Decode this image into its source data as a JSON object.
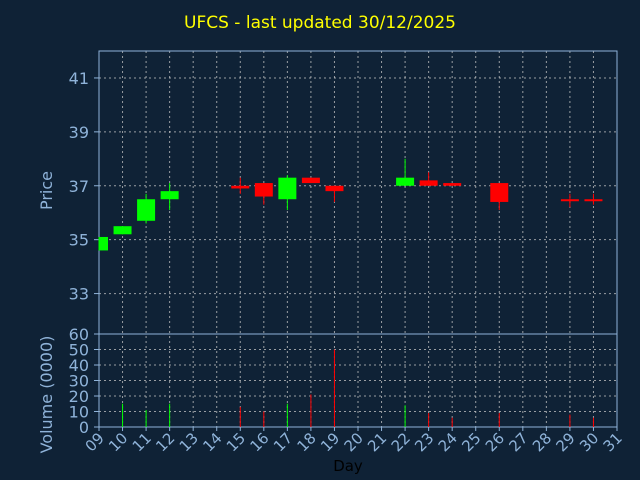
{
  "chart_data": {
    "type": "candlestick",
    "title": "UFCS - last updated 30/12/2025",
    "x_tick_labels": [
      "09",
      "10",
      "11",
      "12",
      "13",
      "14",
      "15",
      "16",
      "17",
      "18",
      "19",
      "20",
      "21",
      "22",
      "23",
      "24",
      "25",
      "26",
      "27",
      "28",
      "29",
      "30",
      "31"
    ],
    "xlabel": "Day",
    "grid": true,
    "price_panel": {
      "ylabel": "Price",
      "ylim": [
        31.5,
        42
      ],
      "y_ticks": [
        33,
        35,
        37,
        39,
        41
      ]
    },
    "volume_panel": {
      "ylabel": "Volume (0000)",
      "ylim": [
        0,
        60
      ],
      "y_ticks": [
        0,
        10,
        20,
        30,
        40,
        50,
        60
      ]
    },
    "candles": [
      {
        "day": "09",
        "open": 34.6,
        "high": 35.1,
        "low": 34.6,
        "close": 35.1,
        "volume": 0
      },
      {
        "day": "10",
        "open": 35.2,
        "high": 35.5,
        "low": 35.2,
        "close": 35.5,
        "volume": 15
      },
      {
        "day": "11",
        "open": 35.7,
        "high": 36.7,
        "low": 35.6,
        "close": 36.5,
        "volume": 11
      },
      {
        "day": "12",
        "open": 36.5,
        "high": 37.1,
        "low": 36.1,
        "close": 36.8,
        "volume": 15
      },
      {
        "day": "15",
        "open": 37.0,
        "high": 37.3,
        "low": 36.7,
        "close": 36.9,
        "volume": 13
      },
      {
        "day": "16",
        "open": 37.1,
        "high": 37.1,
        "low": 36.3,
        "close": 36.6,
        "volume": 10
      },
      {
        "day": "17",
        "open": 36.5,
        "high": 37.4,
        "low": 36.1,
        "close": 37.3,
        "volume": 15
      },
      {
        "day": "18",
        "open": 37.3,
        "high": 37.3,
        "low": 37.1,
        "close": 37.1,
        "volume": 21
      },
      {
        "day": "19",
        "open": 37.0,
        "high": 37.0,
        "low": 36.4,
        "close": 36.8,
        "volume": 50
      },
      {
        "day": "22",
        "open": 37.0,
        "high": 38.0,
        "low": 37.0,
        "close": 37.3,
        "volume": 14
      },
      {
        "day": "23",
        "open": 37.2,
        "high": 37.5,
        "low": 37.0,
        "close": 37.0,
        "volume": 9
      },
      {
        "day": "24",
        "open": 37.1,
        "high": 37.1,
        "low": 37.0,
        "close": 37.0,
        "volume": 6
      },
      {
        "day": "26",
        "open": 37.1,
        "high": 37.1,
        "low": 36.1,
        "close": 36.4,
        "volume": 9
      },
      {
        "day": "29",
        "open": 36.5,
        "high": 36.7,
        "low": 36.2,
        "close": 36.5,
        "volume": 8
      },
      {
        "day": "30",
        "open": 36.5,
        "high": 36.7,
        "low": 36.3,
        "close": 36.5,
        "volume": 6
      }
    ],
    "colors": {
      "up": "#00ff00",
      "down": "#ff0000",
      "flat": "#ff0000",
      "axis_text": "#8fb3d9",
      "grid": "#c8c8c8",
      "frame": "#8fb3d9",
      "background": "#0f2236",
      "title": "#ffff00"
    }
  }
}
